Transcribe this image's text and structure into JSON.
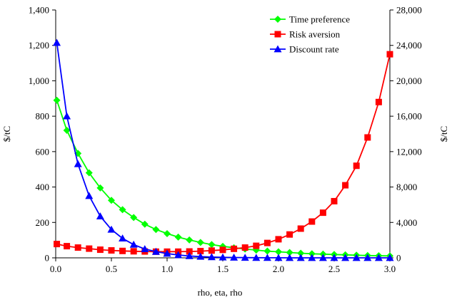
{
  "chart_data": {
    "type": "line",
    "xlabel": "rho, eta, rho",
    "ylabel_left": "$/tC",
    "ylabel_right": "$/tC",
    "xlim": [
      0,
      3.0
    ],
    "ylim_left": [
      0,
      1400
    ],
    "ylim_right": [
      0,
      28000
    ],
    "x_ticks": [
      0.0,
      0.5,
      1.0,
      1.5,
      2.0,
      2.5,
      3.0
    ],
    "x_tick_labels": [
      "0.0",
      "0.5",
      "1.0",
      "1.5",
      "2.0",
      "2.5",
      "3.0"
    ],
    "y_left_ticks": [
      0,
      200,
      400,
      600,
      800,
      1000,
      1200,
      1400
    ],
    "y_left_tick_labels": [
      "0",
      "200",
      "400",
      "600",
      "800",
      "1,000",
      "1,200",
      "1,400"
    ],
    "y_right_ticks": [
      0,
      4000,
      8000,
      12000,
      16000,
      20000,
      24000,
      28000
    ],
    "y_right_tick_labels": [
      "0",
      "4,000",
      "8,000",
      "12,000",
      "16,000",
      "20,000",
      "24,000",
      "28,000"
    ],
    "grid": false,
    "legend_position": "top-right",
    "x": [
      0.01,
      0.1,
      0.2,
      0.3,
      0.4,
      0.5,
      0.6,
      0.7,
      0.8,
      0.9,
      1.0,
      1.1,
      1.2,
      1.3,
      1.4,
      1.5,
      1.6,
      1.7,
      1.8,
      1.9,
      2.0,
      2.1,
      2.2,
      2.3,
      2.4,
      2.5,
      2.6,
      2.7,
      2.8,
      2.9,
      3.0
    ],
    "series": [
      {
        "name": "Time preference",
        "axis": "left",
        "color": "#00ff00",
        "marker": "diamond",
        "values": [
          890,
          720,
          590,
          480,
          395,
          325,
          272,
          228,
          190,
          160,
          137,
          117,
          101,
          87,
          75,
          65,
          57,
          50,
          44,
          38,
          34,
          30,
          26,
          23,
          21,
          19,
          17,
          15,
          13,
          12,
          11
        ]
      },
      {
        "name": "Risk aversion",
        "axis": "left",
        "color": "#ff0000",
        "marker": "square",
        "values": [
          78,
          66,
          58,
          52,
          46,
          42,
          39,
          37,
          36,
          35,
          35,
          35,
          36,
          38,
          41,
          45,
          51,
          58,
          68,
          84,
          105,
          132,
          165,
          205,
          255,
          320,
          410,
          520,
          680,
          880,
          1150
        ]
      },
      {
        "name": "Discount rate",
        "axis": "right",
        "color": "#0000ff",
        "marker": "triangle",
        "values": [
          24300,
          16000,
          10600,
          7000,
          4700,
          3200,
          2200,
          1500,
          1000,
          700,
          480,
          320,
          210,
          140,
          90,
          60,
          40,
          25,
          15,
          10,
          5,
          0,
          0,
          0,
          0,
          0,
          0,
          0,
          0,
          0,
          0
        ]
      }
    ]
  }
}
